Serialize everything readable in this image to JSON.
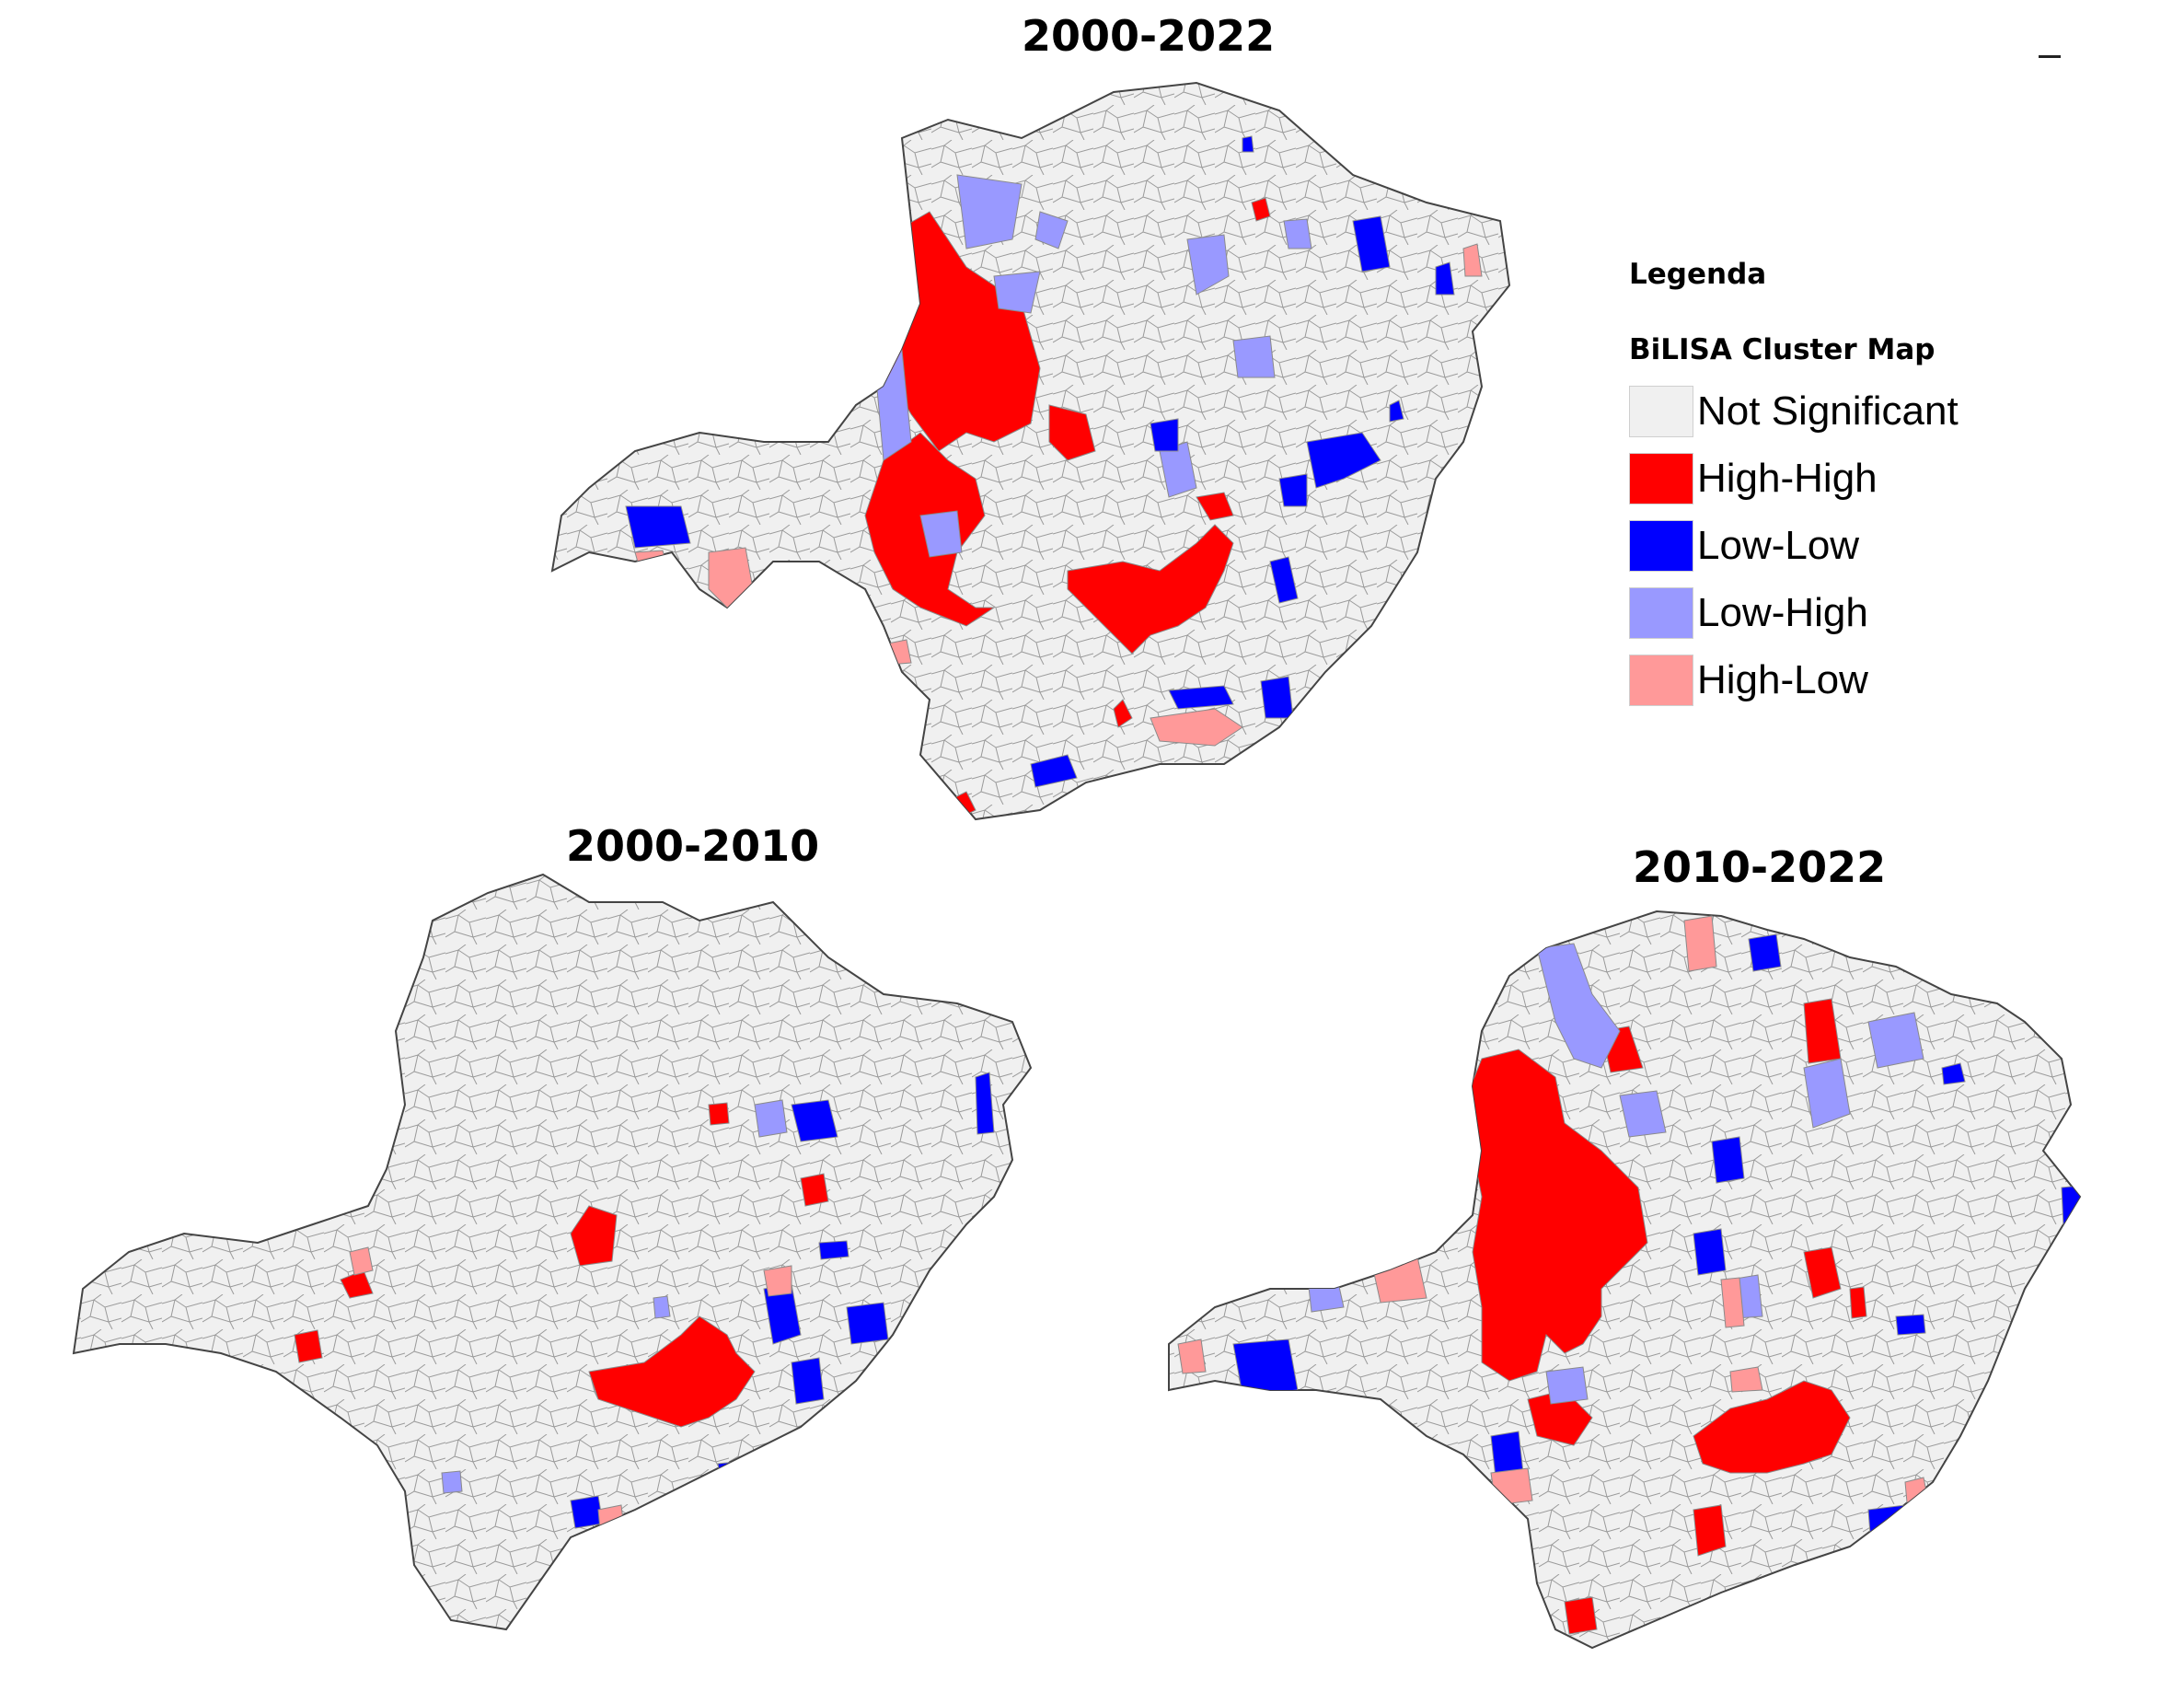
{
  "maps": [
    {
      "title": "2000-2022"
    },
    {
      "title": "2000-2010"
    },
    {
      "title": "2010-2022"
    }
  ],
  "legend": {
    "title": "Legenda",
    "subtitle": "BiLISA Cluster Map",
    "items": [
      {
        "label": "Not Significant",
        "color": "#f0f0f0"
      },
      {
        "label": "High-High",
        "color": "#ff0000"
      },
      {
        "label": "Low-Low",
        "color": "#0000ff"
      },
      {
        "label": "Low-High",
        "color": "#9999ff"
      },
      {
        "label": "High-Low",
        "color": "#ff9999"
      }
    ]
  },
  "colors": {
    "not_significant": "#f0f0f0",
    "high_high": "#ff0000",
    "low_low": "#0000ff",
    "low_high": "#9999ff",
    "high_low": "#ff9999",
    "border": "#8a8a8a"
  }
}
